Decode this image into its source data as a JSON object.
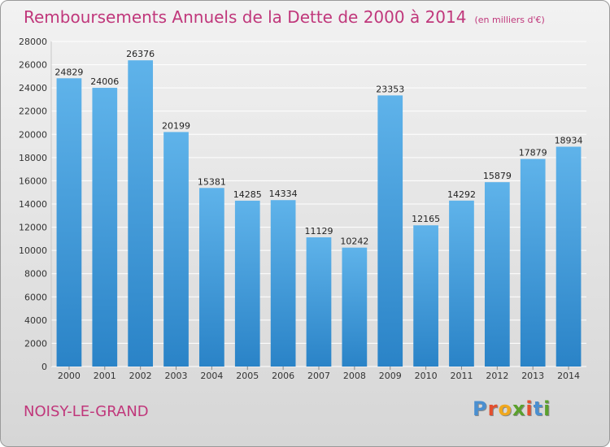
{
  "header": {
    "title": "Remboursements Annuels de la Dette de 2000 à 2014",
    "subtitle": "(en milliers d'€)"
  },
  "footer": {
    "city": "NOISY-LE-GRAND",
    "logo_letters": [
      "P",
      "r",
      "o",
      "x",
      "i",
      "t",
      "i"
    ]
  },
  "colors": {
    "title": "#c0377b",
    "bar_top": "#5fb3ea",
    "bar_bottom": "#2a83c7",
    "grid": "#ffffff",
    "logo": [
      "#4a8fd0",
      "#e44f2e",
      "#f0a81e",
      "#5aa02c",
      "#e44f2e",
      "#4a8fd0",
      "#5aa02c"
    ]
  },
  "chart_data": {
    "type": "bar",
    "categories": [
      "2000",
      "2001",
      "2002",
      "2003",
      "2004",
      "2005",
      "2006",
      "2007",
      "2008",
      "2009",
      "2010",
      "2011",
      "2012",
      "2013",
      "2014"
    ],
    "values": [
      24829,
      24006,
      26376,
      20199,
      15381,
      14285,
      14334,
      11129,
      10242,
      23353,
      12165,
      14292,
      15879,
      17879,
      18934
    ],
    "title": "Remboursements Annuels de la Dette de 2000 à 2014",
    "subtitle": "(en milliers d'€)",
    "xlabel": "",
    "ylabel": "",
    "ylim": [
      0,
      28000
    ],
    "yticks": [
      0,
      2000,
      4000,
      6000,
      8000,
      10000,
      12000,
      14000,
      16000,
      18000,
      20000,
      22000,
      24000,
      26000,
      28000
    ],
    "grid": true,
    "data_labels": true
  }
}
